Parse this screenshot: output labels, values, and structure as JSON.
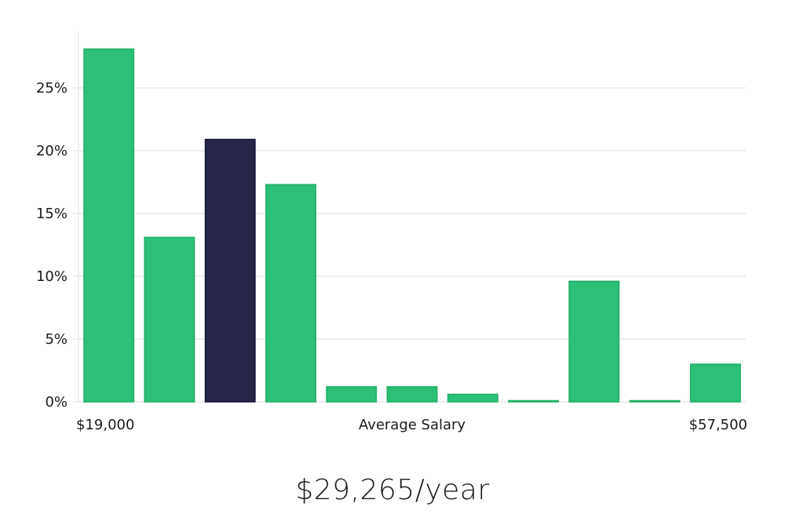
{
  "colors": {
    "default_bar": "#2bbf77",
    "highlight_bar": "#272646",
    "grid": "#dcdcdc",
    "text": "#1a1a1a"
  },
  "headline": "$29,265/year",
  "chart_data": {
    "type": "bar",
    "title": "",
    "xlabel": "Average Salary",
    "ylabel": "",
    "x_range_labels": {
      "min": "$19,000",
      "max": "$57,500"
    },
    "values": [
      28.1,
      13.1,
      20.9,
      17.3,
      1.2,
      1.2,
      0.6,
      0.05,
      9.6,
      0.05,
      3.0
    ],
    "highlight_index": 2,
    "ylim": [
      0,
      30
    ],
    "yticks": [
      0,
      5,
      10,
      15,
      20,
      25
    ],
    "ytick_labels": [
      "0%",
      "5%",
      "10%",
      "15%",
      "20%",
      "25%"
    ],
    "grid": true,
    "legend": "none"
  }
}
